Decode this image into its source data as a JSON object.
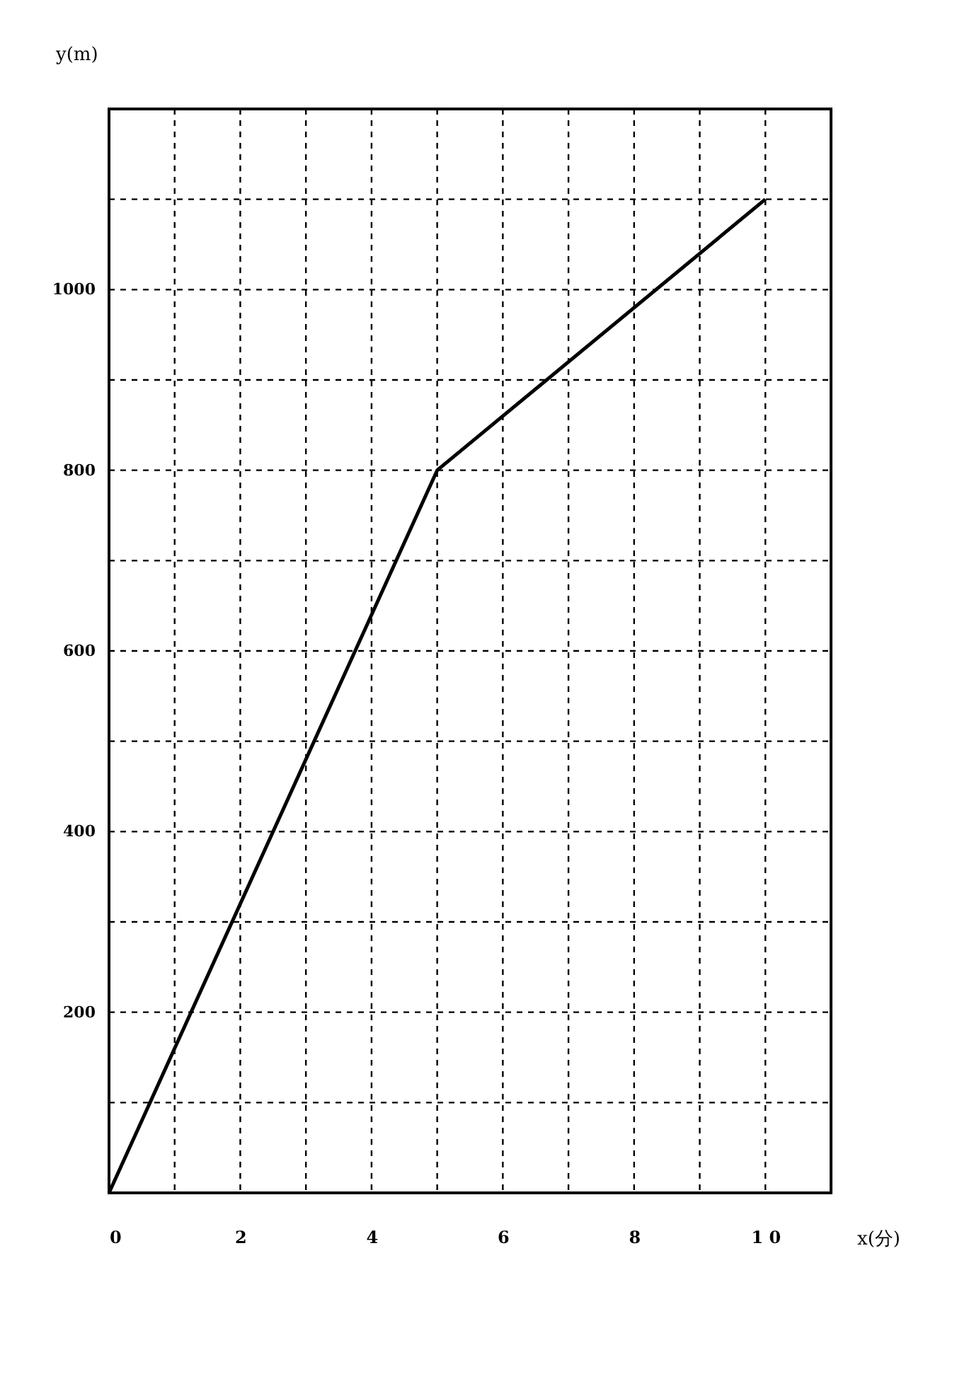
{
  "chart_data": {
    "type": "line",
    "xlabel": "x(分)",
    "ylabel": "y(m)",
    "x": [
      0,
      5,
      10
    ],
    "series": [
      {
        "color": "#000000",
        "values": [
          0,
          800,
          1100
        ]
      }
    ],
    "xlim": [
      0,
      11
    ],
    "ylim": [
      0,
      1200
    ],
    "xticks": [
      0,
      {
        "value": 1,
        "label": null
      },
      2,
      {
        "value": 3,
        "label": null
      },
      4,
      {
        "value": 5,
        "label": null
      },
      6,
      {
        "value": 7,
        "label": null
      },
      8,
      {
        "value": 9,
        "label": null
      },
      {
        "value": 10,
        "label": "1 0"
      }
    ],
    "yticks": [
      {
        "value": 100,
        "label": null
      },
      200,
      {
        "value": 300,
        "label": null
      },
      400,
      {
        "value": 500,
        "label": null
      },
      600,
      {
        "value": 700,
        "label": null
      },
      800,
      {
        "value": 900,
        "label": null
      },
      1000,
      {
        "value": 1100,
        "label": null
      }
    ],
    "grid": true,
    "marker": "none",
    "line_style": "solid",
    "legend": false
  }
}
